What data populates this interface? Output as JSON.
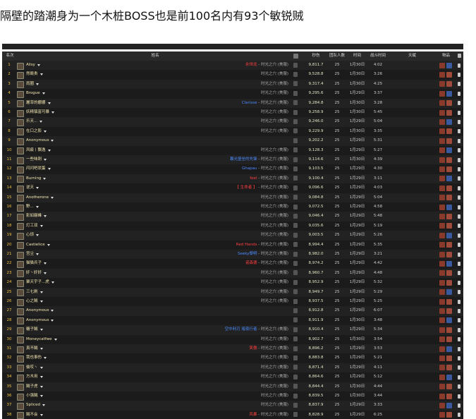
{
  "header": {
    "title": "隔壁的踏潮身为一个木桩BOSS也是前100名内有93个敏锐贼"
  },
  "table": {
    "headers": [
      "名次",
      "姓名",
      "秒伤",
      "团队人数",
      "时间",
      "战斗时间",
      "天赋",
      "物品"
    ],
    "rows": [
      {
        "rank": "1",
        "name": "Alisy",
        "guild": "永恒龙",
        "server": "- 时光之穴 (美服)",
        "dps": "9,811.7",
        "size": "25",
        "date": "1月30日",
        "duration": "4:02"
      },
      {
        "rank": "2",
        "name": "然毁贵",
        "server": "时光之穴 (美服)",
        "dps": "9,528.8",
        "size": "25",
        "date": "1月30日",
        "duration": "3:26"
      },
      {
        "rank": "3",
        "name": "雨圈",
        "server": "时光之穴 (美服)",
        "dps": "9,317.4",
        "size": "25",
        "date": "1月30日",
        "duration": "4:25"
      },
      {
        "rank": "4",
        "name": "Brogue",
        "server": "时光之穴 (美服)",
        "dps": "9,295.6",
        "size": "25",
        "date": "1月29日",
        "duration": "3:37"
      },
      {
        "rank": "5",
        "name": "屠宰的娜娜",
        "guild": "Clarisse",
        "server": "- 时光之穴 (美服)",
        "dps": "9,284.8",
        "size": "25",
        "date": "1月30日",
        "duration": "3:28"
      },
      {
        "rank": "6",
        "name": "妖精镇富可暴",
        "server": "时光之穴 (美服)",
        "dps": "9,258.9",
        "size": "25",
        "date": "1月30日",
        "duration": "5:45"
      },
      {
        "rank": "7",
        "name": "乐天...",
        "server": "时光之穴 (美服)",
        "dps": "9,246.0",
        "size": "25",
        "date": "1月29日",
        "duration": "5:04"
      },
      {
        "rank": "8",
        "name": "在口之影",
        "server": "时光之穴 (美服)",
        "dps": "9,229.9",
        "size": "25",
        "date": "1月30日",
        "duration": "3:35"
      },
      {
        "rank": "9",
        "name": "Anonymous",
        "server": "",
        "dps": "9,202.2",
        "size": "25",
        "date": "1月29日",
        "duration": "5:31"
      },
      {
        "rank": "10",
        "name": "风痕丨飘逸",
        "server": "时光之穴 (美服)",
        "dps": "9,128.3",
        "size": "25",
        "date": "1月29日",
        "duration": "5:27"
      },
      {
        "rank": "11",
        "name": "一些味刺",
        "guild": "暮光堡垒的先锋",
        "server": "- 时光之穴 (美服)",
        "dps": "9,114.6",
        "size": "25",
        "date": "1月30日",
        "duration": "4:39"
      },
      {
        "rank": "12",
        "name": "闪闪吧状蛋",
        "guild": "Ghapau",
        "server": "- 时光之穴 (美服)",
        "dps": "9,103.5",
        "size": "25",
        "date": "1月29日",
        "duration": "4:30"
      },
      {
        "rank": "13",
        "name": "Burning",
        "guild": "feel",
        "server": "- 时光之穴 (美服)",
        "dps": "9,100.4",
        "size": "25",
        "date": "1月29日",
        "duration": "3:11"
      },
      {
        "rank": "14",
        "name": "逆天",
        "guild": "【 生命者 】",
        "server": "- 时光之穴 (美服)",
        "dps": "9,096.6",
        "size": "25",
        "date": "1月29日",
        "duration": "4:03"
      },
      {
        "rank": "15",
        "name": "Anotherone",
        "server": "时光之穴 (美服)",
        "dps": "9,084.8",
        "size": "25",
        "date": "1月29日",
        "duration": "5:04"
      },
      {
        "rank": "16",
        "name": "野...",
        "server": "时光之穴 (美服)",
        "dps": "9,072.5",
        "size": "25",
        "date": "1月29日",
        "duration": "4:58"
      },
      {
        "rank": "17",
        "name": "影如巅峰",
        "server": "时光之穴 (美服)",
        "dps": "9,046.4",
        "size": "25",
        "date": "1月29日",
        "duration": "5:48"
      },
      {
        "rank": "18",
        "name": "灯工双",
        "server": "时光之穴 (美服)",
        "dps": "9,035.6",
        "size": "25",
        "date": "1月29日",
        "duration": "5:19"
      },
      {
        "rank": "19",
        "name": "心烦",
        "server": "时光之穴 (美服)",
        "dps": "9,003.5",
        "size": "25",
        "date": "1月29日",
        "duration": "5:26"
      },
      {
        "rank": "20",
        "name": "Castielice",
        "guild": "Red Hands",
        "server": "- 时光之穴 (美服)",
        "dps": "8,994.4",
        "size": "25",
        "date": "1月29日",
        "duration": "5:35"
      },
      {
        "rank": "21",
        "name": "宫尘",
        "guild": "Seeky黎明",
        "server": "- 时光之穴 (美服)",
        "dps": "8,982.0",
        "size": "25",
        "date": "1月29日",
        "duration": "3:21"
      },
      {
        "rank": "22",
        "name": "猫猫兵子",
        "guild": "诺森德",
        "server": "- 时光之穴 (美服)",
        "dps": "8,974.2",
        "size": "25",
        "date": "1月29日",
        "duration": "4:42"
      },
      {
        "rank": "23",
        "name": "奸丶奸奸",
        "server": "时光之穴 (美服)",
        "dps": "8,960.7",
        "size": "25",
        "date": "1月29日",
        "duration": "4:48"
      },
      {
        "rank": "24",
        "name": "聚天宇子...虎",
        "server": "时光之穴 (美服)",
        "dps": "8,952.9",
        "size": "25",
        "date": "1月29日",
        "duration": "5:32"
      },
      {
        "rank": "25",
        "name": "三七刷",
        "server": "时光之穴 (美服)",
        "dps": "8,949.7",
        "size": "25",
        "date": "1月29日",
        "duration": "5:29"
      },
      {
        "rank": "26",
        "name": "心之贼",
        "server": "时光之穴 (美服)",
        "dps": "8,937.5",
        "size": "25",
        "date": "1月29日",
        "duration": "5:25"
      },
      {
        "rank": "27",
        "name": "Anonymous",
        "server": "",
        "dps": "8,912.8",
        "size": "25",
        "date": "1月29日",
        "duration": "6:07"
      },
      {
        "rank": "28",
        "name": "Anonymous",
        "server": "",
        "dps": "8,911.9",
        "size": "25",
        "date": "1月30日",
        "duration": "3:48"
      },
      {
        "rank": "29",
        "name": "糖子贼",
        "guild": "空中利刃 暗夜行者",
        "server": "- 时光之穴 (美服)",
        "dps": "8,910.4",
        "size": "25",
        "date": "1月29日",
        "duration": "5:34"
      },
      {
        "rank": "30",
        "name": "Moneycatfwe",
        "server": "时光之穴 (美服)",
        "dps": "8,902.7",
        "size": "25",
        "date": "1月30日",
        "duration": "3:54"
      },
      {
        "rank": "31",
        "name": "真不贼",
        "guild": "笑傲",
        "server": "- 时光之穴 (美服)",
        "dps": "8,896.2",
        "size": "25",
        "date": "1月29日",
        "duration": "3:53"
      },
      {
        "rank": "32",
        "name": "我也事伤",
        "server": "时光之穴 (美服)",
        "dps": "8,883.8",
        "size": "25",
        "date": "1月29日",
        "duration": "5:21"
      },
      {
        "rank": "33",
        "name": "偷哎丶",
        "server": "时光之穴 (美服)",
        "dps": "8,871.4",
        "size": "25",
        "date": "1月29日",
        "duration": "4:11"
      },
      {
        "rank": "34",
        "name": "方木用",
        "server": "时光之穴 (美服)",
        "dps": "8,864.6",
        "size": "25",
        "date": "1月29日",
        "duration": "5:12"
      },
      {
        "rank": "35",
        "name": "贼子虎",
        "server": "时光之穴 (美服)",
        "dps": "8,844.4",
        "size": "25",
        "date": "1月30日",
        "duration": "4:44"
      },
      {
        "rank": "36",
        "name": "小强贼",
        "server": "时光之穴 (美服)",
        "dps": "8,839.5",
        "size": "25",
        "date": "1月30日",
        "duration": "3:44"
      },
      {
        "rank": "37",
        "name": "Spliced",
        "server": "时光之穴 (美服)",
        "dps": "8,837.9",
        "size": "25",
        "date": "1月29日",
        "duration": "3:33"
      },
      {
        "rank": "38",
        "name": "贼不会",
        "guild": "风暴",
        "server": "- 时光之穴 (美服)",
        "dps": "8,828.9",
        "size": "25",
        "date": "1月29日",
        "duration": "6:25"
      }
    ]
  }
}
